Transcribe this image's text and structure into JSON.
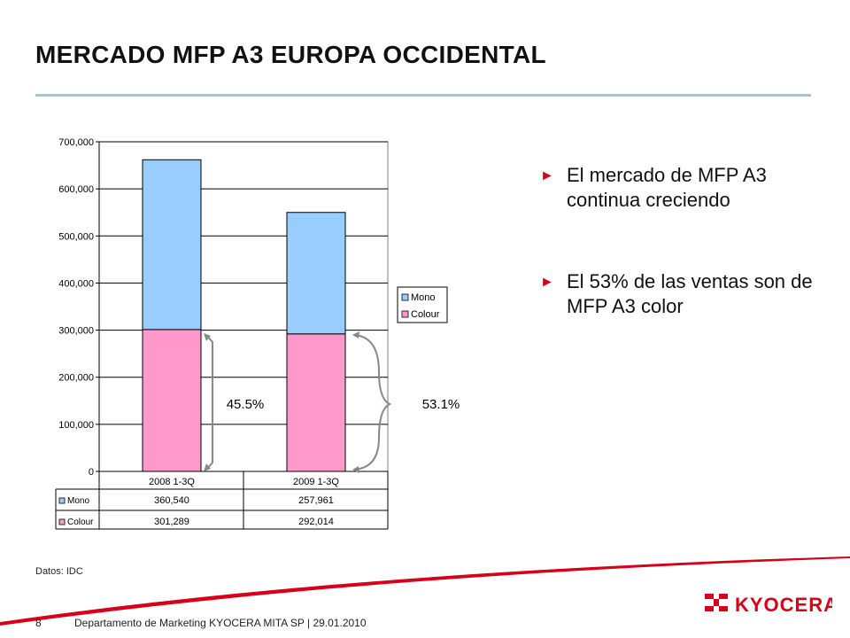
{
  "title": "MERCADO MFP A3 EUROPA OCCIDENTAL",
  "bullets": [
    "El mercado de MFP A3 continua creciendo",
    "El 53% de las ventas son de MFP A3 color"
  ],
  "source": "Datos: IDC",
  "footer": {
    "page": "8",
    "text": "Departamento de Marketing KYOCERA MITA SP | 29.01.2010"
  },
  "logo_text": "KYOCERA",
  "colors": {
    "mono": "#99ccff",
    "colour": "#ff99cc",
    "accent": "#d7001a",
    "title_rule": "#a9c3d6"
  },
  "chart_data": {
    "type": "bar",
    "stacked": true,
    "categories": [
      "2008 1-3Q",
      "2009 1-3Q"
    ],
    "series": [
      {
        "name": "Colour",
        "values": [
          301289,
          292014
        ],
        "color": "#ff99cc"
      },
      {
        "name": "Mono",
        "values": [
          360540,
          257961
        ],
        "color": "#99ccff"
      }
    ],
    "ylim": [
      0,
      700000
    ],
    "yticks": [
      "0",
      "100,000",
      "200,000",
      "300,000",
      "400,000",
      "500,000",
      "600,000",
      "700,000"
    ],
    "table": {
      "rows": [
        {
          "name": "Mono",
          "values": [
            "360,540",
            "257,961"
          ]
        },
        {
          "name": "Colour",
          "values": [
            "301,289",
            "292,014"
          ]
        }
      ]
    },
    "legend": [
      "Mono",
      "Colour"
    ],
    "legend_position": "right",
    "grid": true,
    "annotations": [
      "45.5%",
      "53.1%"
    ]
  }
}
